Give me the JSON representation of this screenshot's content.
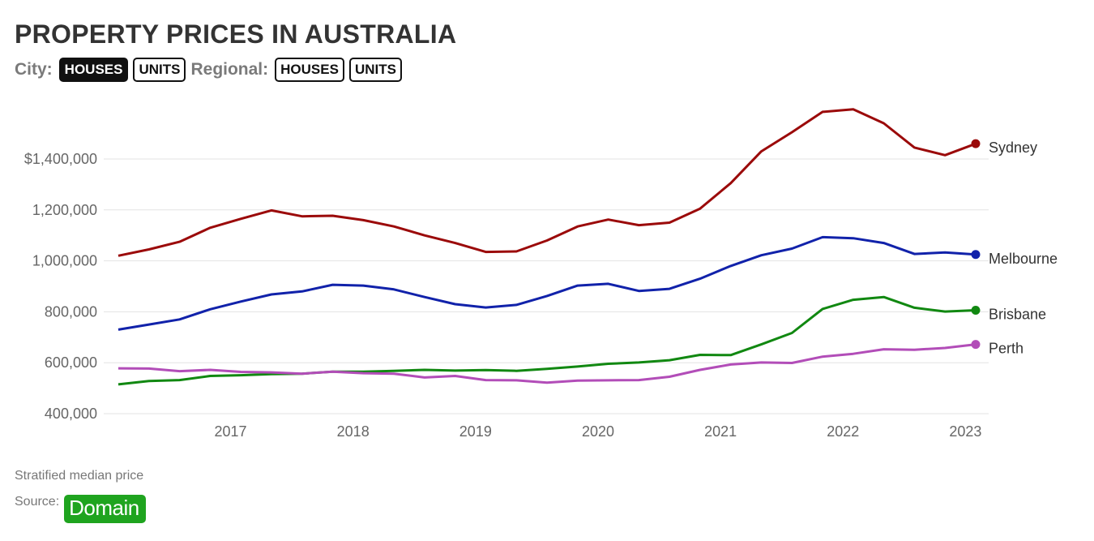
{
  "title": "PROPERTY PRICES IN AUSTRALIA",
  "controls": {
    "city_label": "City:",
    "city_houses": "HOUSES",
    "city_units": "UNITS",
    "regional_label": "Regional:",
    "regional_houses": "HOUSES",
    "regional_units": "UNITS"
  },
  "footer": {
    "note": "Stratified median price",
    "source_label": "Source:",
    "source_name": "Domain",
    "source_color": "#1fa41f"
  },
  "chart_data": {
    "type": "line",
    "title": "PROPERTY PRICES IN AUSTRALIA",
    "xlabel": "",
    "ylabel": "",
    "x": [
      "2016-03",
      "2016-06",
      "2016-09",
      "2016-12",
      "2017-03",
      "2017-06",
      "2017-09",
      "2017-12",
      "2018-03",
      "2018-06",
      "2018-09",
      "2018-12",
      "2019-03",
      "2019-06",
      "2019-09",
      "2019-12",
      "2020-03",
      "2020-06",
      "2020-09",
      "2020-12",
      "2021-03",
      "2021-06",
      "2021-09",
      "2021-12",
      "2022-03",
      "2022-06",
      "2022-09",
      "2022-12",
      "2023-03"
    ],
    "x_ticks": [
      "2017",
      "2018",
      "2019",
      "2020",
      "2021",
      "2022",
      "2023"
    ],
    "y_ticks": [
      400000,
      600000,
      800000,
      1000000,
      1200000,
      1400000
    ],
    "y_tick_labels": [
      "400,000",
      "600,000",
      "800,000",
      "1,000,000",
      "1,200,000",
      "$1,400,000"
    ],
    "ylim": [
      400000,
      1630000
    ],
    "grid": "horizontal",
    "legend": "end-of-line labels",
    "series": [
      {
        "name": "Sydney",
        "color": "#9b0a0a",
        "values": [
          1020000,
          1045000,
          1075000,
          1130000,
          1165000,
          1198000,
          1175000,
          1177000,
          1160000,
          1135000,
          1100000,
          1070000,
          1035000,
          1037000,
          1080000,
          1135000,
          1162000,
          1140000,
          1150000,
          1205000,
          1305000,
          1430000,
          1505000,
          1585000,
          1595000,
          1540000,
          1445000,
          1415000,
          1460000
        ]
      },
      {
        "name": "Melbourne",
        "color": "#1122aa",
        "values": [
          730000,
          750000,
          770000,
          810000,
          840000,
          868000,
          880000,
          906000,
          903000,
          888000,
          858000,
          830000,
          817000,
          827000,
          862000,
          903000,
          910000,
          882000,
          890000,
          930000,
          980000,
          1022000,
          1048000,
          1093000,
          1089000,
          1070000,
          1027000,
          1033000,
          1025000
        ]
      },
      {
        "name": "Brisbane",
        "color": "#118811",
        "values": [
          515000,
          528000,
          532000,
          548000,
          551000,
          555000,
          557000,
          565000,
          565000,
          568000,
          572000,
          569000,
          571000,
          568000,
          576000,
          585000,
          596000,
          601000,
          610000,
          631000,
          630000,
          672000,
          717000,
          811000,
          847000,
          858000,
          816000,
          801000,
          806000
        ]
      },
      {
        "name": "Perth",
        "color": "#b24db8",
        "values": [
          578000,
          577000,
          567000,
          572000,
          564000,
          562000,
          557000,
          565000,
          559000,
          557000,
          542000,
          548000,
          532000,
          531000,
          522000,
          530000,
          531000,
          532000,
          545000,
          572000,
          593000,
          601000,
          599000,
          624000,
          635000,
          653000,
          651000,
          658000,
          672000
        ]
      }
    ]
  }
}
